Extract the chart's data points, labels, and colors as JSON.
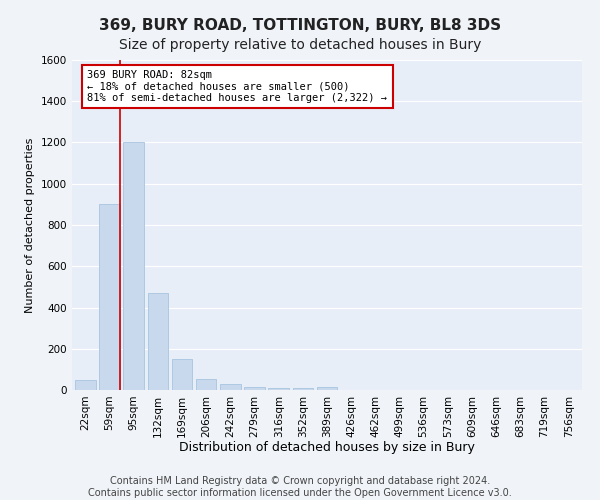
{
  "title1": "369, BURY ROAD, TOTTINGTON, BURY, BL8 3DS",
  "title2": "Size of property relative to detached houses in Bury",
  "xlabel": "Distribution of detached houses by size in Bury",
  "ylabel": "Number of detached properties",
  "bar_color": "#c8d9ee",
  "bar_edge_color": "#a8c4e0",
  "categories": [
    "22sqm",
    "59sqm",
    "95sqm",
    "132sqm",
    "169sqm",
    "206sqm",
    "242sqm",
    "279sqm",
    "316sqm",
    "352sqm",
    "389sqm",
    "426sqm",
    "462sqm",
    "499sqm",
    "536sqm",
    "573sqm",
    "609sqm",
    "646sqm",
    "683sqm",
    "719sqm",
    "756sqm"
  ],
  "values": [
    50,
    900,
    1200,
    470,
    150,
    55,
    30,
    15,
    10,
    10,
    15,
    0,
    0,
    0,
    0,
    0,
    0,
    0,
    0,
    0,
    0
  ],
  "ylim": [
    0,
    1600
  ],
  "yticks": [
    0,
    200,
    400,
    600,
    800,
    1000,
    1200,
    1400,
    1600
  ],
  "vline_color": "#cc0000",
  "vline_x": 1.42,
  "annotation_text": "369 BURY ROAD: 82sqm\n← 18% of detached houses are smaller (500)\n81% of semi-detached houses are larger (2,322) →",
  "annotation_box_color": "#ffffff",
  "annotation_box_edge": "#cc0000",
  "footer1": "Contains HM Land Registry data © Crown copyright and database right 2024.",
  "footer2": "Contains public sector information licensed under the Open Government Licence v3.0.",
  "background_color": "#e8eef8",
  "grid_color": "#ffffff",
  "title1_fontsize": 11,
  "title2_fontsize": 10,
  "ylabel_fontsize": 8,
  "xlabel_fontsize": 9,
  "tick_fontsize": 7.5,
  "footer_fontsize": 7
}
